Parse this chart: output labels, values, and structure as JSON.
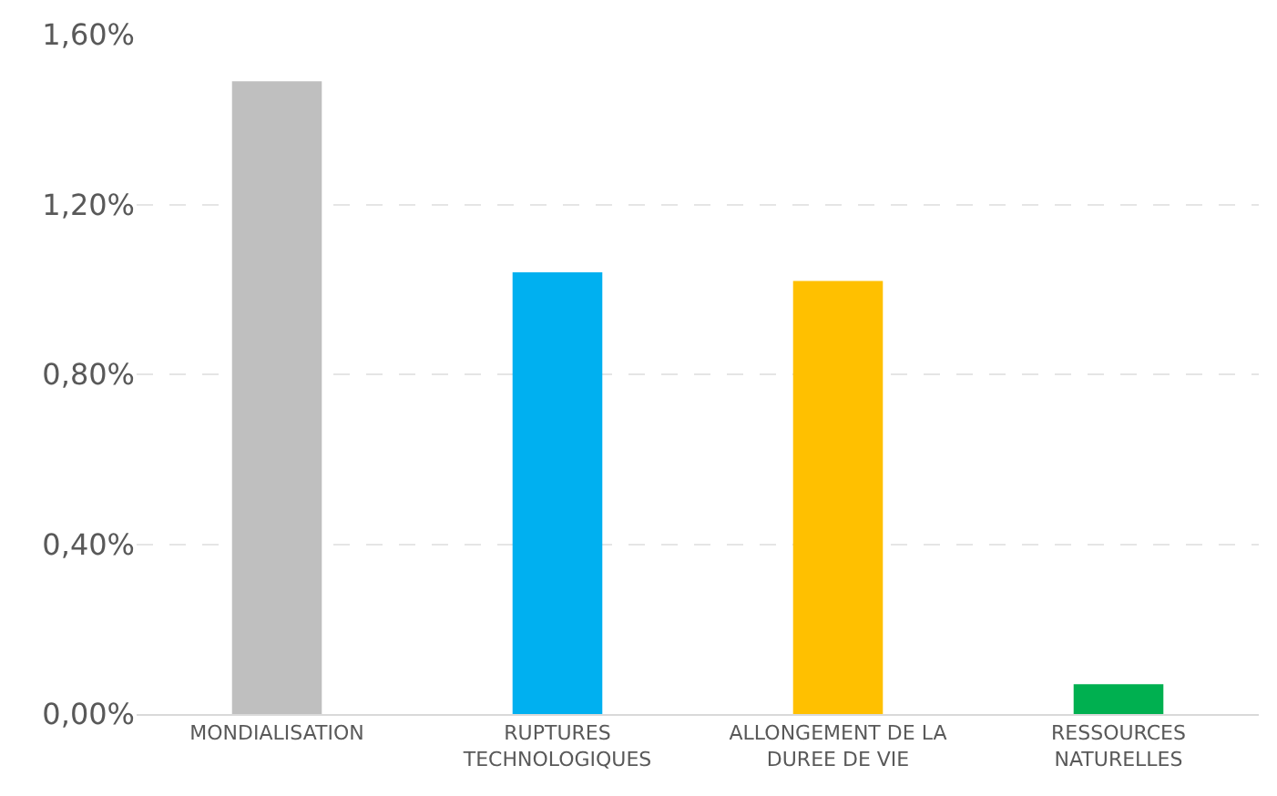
{
  "chart_data": {
    "type": "bar",
    "categories": [
      "MONDIALISATION",
      "RUPTURES TECHNOLOGIQUES",
      "ALLONGEMENT DE LA DUREE DE VIE",
      "RESSOURCES NATURELLES"
    ],
    "values": [
      1.49,
      1.04,
      1.02,
      0.07
    ],
    "colors": [
      "#bfbfbf",
      "#00b0f0",
      "#ffc000",
      "#00b050"
    ],
    "ylim": [
      0,
      1.6
    ],
    "yticks": [
      {
        "value": 0,
        "label": "0,00%"
      },
      {
        "value": 0.4,
        "label": "0,40%"
      },
      {
        "value": 0.8,
        "label": "0,80%"
      },
      {
        "value": 1.2,
        "label": "1,20%"
      },
      {
        "value": 1.6,
        "label": "1,60%"
      }
    ],
    "grid": "y",
    "line_style": "dashed"
  }
}
